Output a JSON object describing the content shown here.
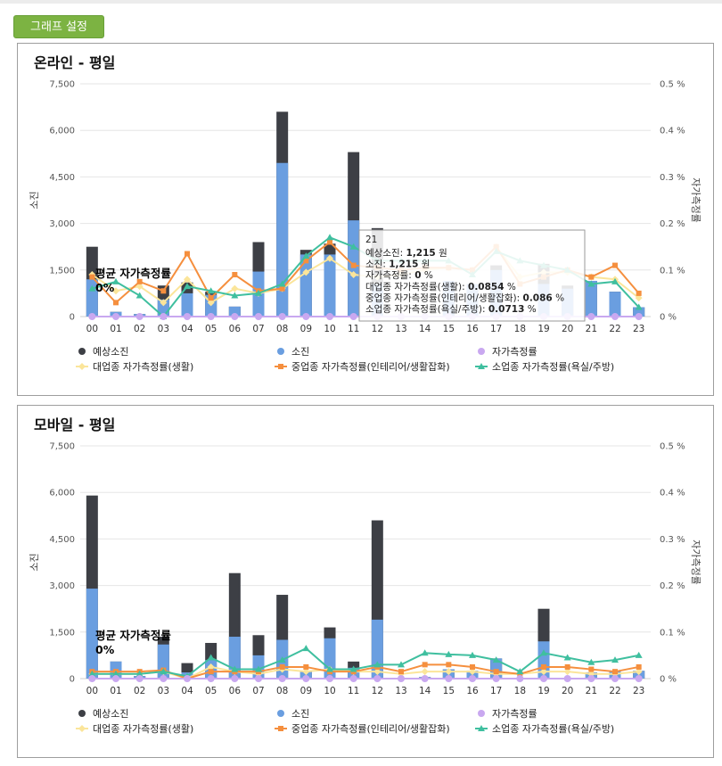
{
  "button_label": "그래프 설정",
  "legend_labels": [
    "예상소진",
    "소진",
    "자가측정률",
    "대업종 자가측정률(생활)",
    "중업종 자가측정률(인테리어/생활잡화)",
    "소업종 자가측정률(욕실/주방)"
  ],
  "colors": {
    "forecast": "#3d3f45",
    "spend": "#6a9ee0",
    "self": "#c9a8f0",
    "large": "#fbe59a",
    "medium": "#f58f3e",
    "small": "#3fbf9f"
  },
  "chart_data": [
    {
      "type": "bar",
      "title": "온라인 - 평일",
      "ylabel": "소진",
      "y2label": "자가측정률",
      "ylim": [
        0,
        7500
      ],
      "y2lim": [
        0,
        0.5
      ],
      "yticks": [
        "0",
        "1,500",
        "3,000",
        "4,500",
        "6,000",
        "7,500"
      ],
      "y2ticks": [
        "0 %",
        "0.1 %",
        "0.2 %",
        "0.3 %",
        "0.4 %",
        "0.5 %"
      ],
      "categories": [
        "00",
        "01",
        "02",
        "03",
        "04",
        "05",
        "06",
        "07",
        "08",
        "09",
        "10",
        "11",
        "12",
        "13",
        "14",
        "15",
        "16",
        "17",
        "18",
        "19",
        "20",
        "21",
        "22",
        "23"
      ],
      "annotation": {
        "title": "평균 자가측정률",
        "value": "0%"
      },
      "series": [
        {
          "name": "예상소진",
          "kind": "bar",
          "values": [
            2250,
            150,
            80,
            1000,
            1100,
            800,
            320,
            2400,
            6600,
            2150,
            2350,
            5300,
            2850,
            0,
            0,
            1150,
            1050,
            1650,
            0,
            1700,
            1000,
            1150,
            800,
            300
          ]
        },
        {
          "name": "소진",
          "kind": "bar",
          "values": [
            1200,
            150,
            80,
            550,
            750,
            700,
            320,
            1450,
            4950,
            2000,
            2000,
            3100,
            1050,
            0,
            0,
            1150,
            1050,
            1500,
            0,
            1050,
            900,
            1150,
            800,
            300
          ]
        },
        {
          "name": "자가측정률",
          "kind": "line",
          "values": [
            0,
            0,
            0,
            0,
            0,
            0,
            0,
            0,
            0,
            0,
            0,
            0,
            0,
            0,
            0,
            0,
            0,
            0,
            0,
            0,
            0,
            0,
            0,
            0
          ]
        },
        {
          "name": "대업종 자가측정률(생활)",
          "kind": "line",
          "values": [
            0.09,
            0.055,
            0.065,
            0.03,
            0.08,
            0.03,
            0.06,
            0.05,
            0.06,
            0.095,
            0.125,
            0.09,
            0.085,
            0.09,
            0.1,
            0.105,
            0.1,
            0.15,
            0.085,
            0.095,
            0.095,
            0.085,
            0.08,
            0.04
          ]
        },
        {
          "name": "중업종 자가측정률(인테리어/생활잡화)",
          "kind": "line",
          "values": [
            0.085,
            0.03,
            0.075,
            0.055,
            0.135,
            0.04,
            0.09,
            0.055,
            0.06,
            0.12,
            0.16,
            0.11,
            0.105,
            0.1,
            0.105,
            0.105,
            0.1,
            0.15,
            0.07,
            0.085,
            0.1,
            0.085,
            0.11,
            0.05
          ]
        },
        {
          "name": "소업종 자가측정률(욕실/주방)",
          "kind": "line",
          "values": [
            0.06,
            0.075,
            0.045,
            0.0,
            0.065,
            0.055,
            0.045,
            0.05,
            0.07,
            0.13,
            0.17,
            0.15,
            0.12,
            0.12,
            0.12,
            0.12,
            0.09,
            0.14,
            0.12,
            0.11,
            0.1,
            0.07,
            0.075,
            0.02
          ]
        }
      ],
      "tooltip": {
        "title": "21",
        "rows": [
          {
            "label": "예상소진",
            "value": "1,215",
            "unit": "원"
          },
          {
            "label": "소진",
            "value": "1,215",
            "unit": "원"
          },
          {
            "label": "자가측정률",
            "value": "0",
            "unit": "%"
          },
          {
            "label": "대업종 자가측정률(생활)",
            "value": "0.0854",
            "unit": "%"
          },
          {
            "label": "중업종 자가측정률(인테리어/생활잡화)",
            "value": "0.086",
            "unit": "%"
          },
          {
            "label": "소업종 자가측정률(욕실/주방)",
            "value": "0.0713",
            "unit": "%"
          }
        ]
      }
    },
    {
      "type": "bar",
      "title": "모바일 - 평일",
      "ylabel": "소진",
      "y2label": "자가측정률",
      "ylim": [
        0,
        7500
      ],
      "y2lim": [
        0,
        0.5
      ],
      "yticks": [
        "0",
        "1,500",
        "3,000",
        "4,500",
        "6,000",
        "7,500"
      ],
      "y2ticks": [
        "0 %",
        "0.1 %",
        "0.2 %",
        "0.3 %",
        "0.4 %",
        "0.5 %"
      ],
      "categories": [
        "00",
        "01",
        "02",
        "03",
        "04",
        "05",
        "06",
        "07",
        "08",
        "09",
        "10",
        "11",
        "12",
        "13",
        "14",
        "15",
        "16",
        "17",
        "18",
        "19",
        "20",
        "21",
        "22",
        "23"
      ],
      "annotation": {
        "title": "평균 자가측정률",
        "value": "0%"
      },
      "series": [
        {
          "name": "예상소진",
          "kind": "bar",
          "values": [
            5900,
            550,
            80,
            1350,
            500,
            1150,
            3400,
            1400,
            2700,
            250,
            1650,
            550,
            5100,
            0,
            50,
            300,
            250,
            650,
            0,
            2250,
            0,
            200,
            250,
            250
          ]
        },
        {
          "name": "소진",
          "kind": "bar",
          "values": [
            2900,
            550,
            80,
            1100,
            200,
            600,
            1350,
            750,
            1250,
            250,
            1300,
            350,
            1900,
            0,
            50,
            300,
            250,
            650,
            0,
            1200,
            0,
            200,
            250,
            250
          ]
        },
        {
          "name": "자가측정률",
          "kind": "line",
          "values": [
            0,
            0,
            0,
            0,
            0,
            0,
            0,
            0,
            0,
            0,
            0,
            0,
            0,
            0,
            0,
            0,
            0,
            0,
            0,
            0,
            0,
            0,
            0,
            0
          ]
        },
        {
          "name": "대업종 자가측정률(생활)",
          "kind": "line",
          "values": [
            0.01,
            0.01,
            0.01,
            0.015,
            0.0,
            0.025,
            0.015,
            0.01,
            0.02,
            0.015,
            0.02,
            0.015,
            0.015,
            0.01,
            0.015,
            0.015,
            0.015,
            0.01,
            0.01,
            0.015,
            0.015,
            0.01,
            0.01,
            0.015
          ]
        },
        {
          "name": "중업종 자가측정률(인테리어/생활잡화)",
          "kind": "line",
          "values": [
            0.015,
            0.015,
            0.015,
            0.018,
            0.0,
            0.015,
            0.015,
            0.015,
            0.025,
            0.025,
            0.015,
            0.015,
            0.025,
            0.015,
            0.03,
            0.03,
            0.025,
            0.015,
            0.01,
            0.025,
            0.025,
            0.02,
            0.015,
            0.025
          ]
        },
        {
          "name": "소업종 자가측정률(욕실/주방)",
          "kind": "line",
          "values": [
            0.01,
            0.01,
            0.01,
            0.015,
            0.005,
            0.045,
            0.02,
            0.02,
            0.04,
            0.065,
            0.02,
            0.02,
            0.03,
            0.03,
            0.055,
            0.052,
            0.05,
            0.04,
            0.015,
            0.055,
            0.045,
            0.035,
            0.04,
            0.05
          ]
        }
      ]
    }
  ]
}
